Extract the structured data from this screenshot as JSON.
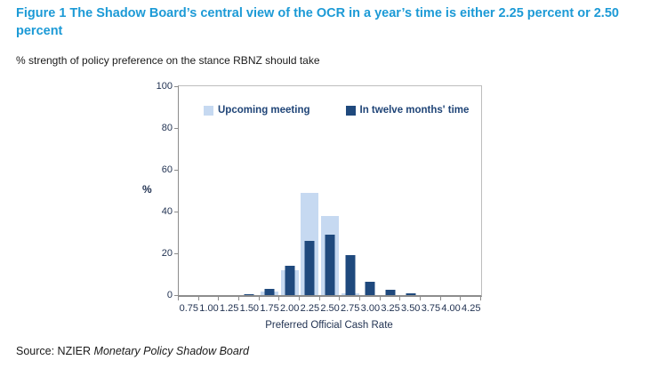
{
  "title": "Figure 1 The Shadow Board’s central view of the OCR in a year’s time is either 2.25 percent or 2.50 percent",
  "subtitle": "% strength of policy preference on the stance RBNZ should take",
  "source": {
    "prefix": "Source: NZIER ",
    "italic": "Monetary Policy Shadow Board"
  },
  "colors": {
    "title_blue": "#1c9ad6",
    "light_series": "#c6d9f1",
    "dark_series": "#1f497d",
    "axis_gray": "#8c8c8c"
  },
  "chart_data": {
    "type": "bar",
    "title": "",
    "categories": [
      "0.75",
      "1.00",
      "1.25",
      "1.50",
      "1.75",
      "2.00",
      "2.25",
      "2.50",
      "2.75",
      "3.00",
      "3.25",
      "3.50",
      "3.75",
      "4.00",
      "4.25"
    ],
    "series": [
      {
        "name": "Upcoming meeting",
        "color": "#c6d9f1",
        "values": [
          0,
          0,
          0,
          0,
          1.5,
          12,
          49,
          38,
          1,
          0,
          0,
          0,
          0,
          0,
          0
        ]
      },
      {
        "name": "In twelve months' time",
        "color": "#1f497d",
        "values": [
          0,
          0,
          0,
          0.5,
          3,
          14,
          26,
          29,
          19,
          6.5,
          2.5,
          1,
          0,
          0,
          0
        ]
      }
    ],
    "ylabel": "%",
    "xlabel": "Preferred  Official Cash Rate",
    "ylim": [
      0,
      100
    ],
    "y_ticks": [
      0,
      20,
      40,
      60,
      80,
      100
    ],
    "legend_position": "top-inside",
    "grid": false
  }
}
